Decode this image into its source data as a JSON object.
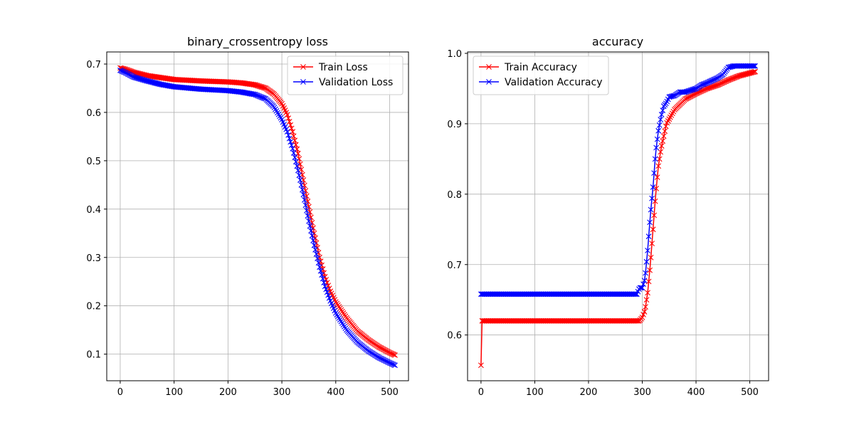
{
  "chart_data": [
    {
      "type": "line",
      "title": "binary_crossentropy loss",
      "xlabel": "",
      "ylabel": "",
      "xlim": [
        -25,
        535
      ],
      "ylim": [
        0.045,
        0.725
      ],
      "xticks": [
        "0",
        "100",
        "200",
        "300",
        "400",
        "500"
      ],
      "yticks": [
        "0.1",
        "0.2",
        "0.3",
        "0.4",
        "0.5",
        "0.6",
        "0.7"
      ],
      "grid": true,
      "legend_position": "upper right",
      "marker": "x",
      "series": [
        {
          "name": "Train Loss",
          "color": "#ff0000",
          "points": [
            [
              0,
              0.692
            ],
            [
              10,
              0.689
            ],
            [
              25,
              0.683
            ],
            [
              50,
              0.676
            ],
            [
              75,
              0.672
            ],
            [
              100,
              0.668
            ],
            [
              150,
              0.665
            ],
            [
              200,
              0.663
            ],
            [
              225,
              0.661
            ],
            [
              250,
              0.657
            ],
            [
              270,
              0.65
            ],
            [
              285,
              0.638
            ],
            [
              300,
              0.618
            ],
            [
              310,
              0.595
            ],
            [
              320,
              0.56
            ],
            [
              330,
              0.515
            ],
            [
              340,
              0.46
            ],
            [
              350,
              0.405
            ],
            [
              360,
              0.35
            ],
            [
              370,
              0.3
            ],
            [
              380,
              0.26
            ],
            [
              390,
              0.23
            ],
            [
              400,
              0.208
            ],
            [
              420,
              0.175
            ],
            [
              440,
              0.148
            ],
            [
              460,
              0.13
            ],
            [
              480,
              0.115
            ],
            [
              500,
              0.103
            ],
            [
              510,
              0.098
            ]
          ]
        },
        {
          "name": "Validation Loss",
          "color": "#0000ff",
          "points": [
            [
              0,
              0.687
            ],
            [
              10,
              0.682
            ],
            [
              25,
              0.673
            ],
            [
              50,
              0.665
            ],
            [
              75,
              0.658
            ],
            [
              100,
              0.653
            ],
            [
              150,
              0.648
            ],
            [
              200,
              0.645
            ],
            [
              225,
              0.642
            ],
            [
              250,
              0.637
            ],
            [
              270,
              0.628
            ],
            [
              285,
              0.612
            ],
            [
              300,
              0.585
            ],
            [
              310,
              0.56
            ],
            [
              320,
              0.525
            ],
            [
              330,
              0.48
            ],
            [
              340,
              0.43
            ],
            [
              350,
              0.375
            ],
            [
              360,
              0.325
            ],
            [
              370,
              0.28
            ],
            [
              380,
              0.24
            ],
            [
              390,
              0.21
            ],
            [
              400,
              0.185
            ],
            [
              420,
              0.15
            ],
            [
              440,
              0.125
            ],
            [
              460,
              0.107
            ],
            [
              480,
              0.093
            ],
            [
              500,
              0.082
            ],
            [
              510,
              0.077
            ]
          ]
        }
      ]
    },
    {
      "type": "line",
      "title": "accuracy",
      "xlabel": "",
      "ylabel": "",
      "xlim": [
        -25,
        535
      ],
      "ylim": [
        0.535,
        1.002
      ],
      "xticks": [
        "0",
        "100",
        "200",
        "300",
        "400",
        "500"
      ],
      "yticks": [
        "0.6",
        "0.7",
        "0.8",
        "0.9",
        "1.0"
      ],
      "grid": true,
      "legend_position": "upper left",
      "marker": "x",
      "series": [
        {
          "name": "Train Accuracy",
          "color": "#ff0000",
          "points": [
            [
              0,
              0.557
            ],
            [
              1,
              0.62
            ],
            [
              100,
              0.62
            ],
            [
              200,
              0.62
            ],
            [
              295,
              0.62
            ],
            [
              300,
              0.625
            ],
            [
              305,
              0.635
            ],
            [
              310,
              0.66
            ],
            [
              315,
              0.7
            ],
            [
              320,
              0.75
            ],
            [
              325,
              0.8
            ],
            [
              330,
              0.84
            ],
            [
              335,
              0.865
            ],
            [
              345,
              0.9
            ],
            [
              360,
              0.92
            ],
            [
              380,
              0.935
            ],
            [
              400,
              0.943
            ],
            [
              420,
              0.95
            ],
            [
              440,
              0.955
            ],
            [
              460,
              0.962
            ],
            [
              480,
              0.968
            ],
            [
              500,
              0.972
            ],
            [
              510,
              0.974
            ]
          ]
        },
        {
          "name": "Validation Accuracy",
          "color": "#0000ff",
          "points": [
            [
              0,
              0.658
            ],
            [
              100,
              0.658
            ],
            [
              200,
              0.658
            ],
            [
              290,
              0.658
            ],
            [
              295,
              0.667
            ],
            [
              300,
              0.667
            ],
            [
              305,
              0.68
            ],
            [
              310,
              0.72
            ],
            [
              315,
              0.77
            ],
            [
              320,
              0.81
            ],
            [
              325,
              0.86
            ],
            [
              330,
              0.89
            ],
            [
              335,
              0.91
            ],
            [
              340,
              0.925
            ],
            [
              345,
              0.93
            ],
            [
              350,
              0.938
            ],
            [
              360,
              0.94
            ],
            [
              370,
              0.945
            ],
            [
              380,
              0.945
            ],
            [
              400,
              0.95
            ],
            [
              410,
              0.955
            ],
            [
              420,
              0.958
            ],
            [
              440,
              0.965
            ],
            [
              450,
              0.97
            ],
            [
              460,
              0.98
            ],
            [
              470,
              0.982
            ],
            [
              500,
              0.982
            ],
            [
              510,
              0.982
            ]
          ]
        }
      ]
    }
  ]
}
